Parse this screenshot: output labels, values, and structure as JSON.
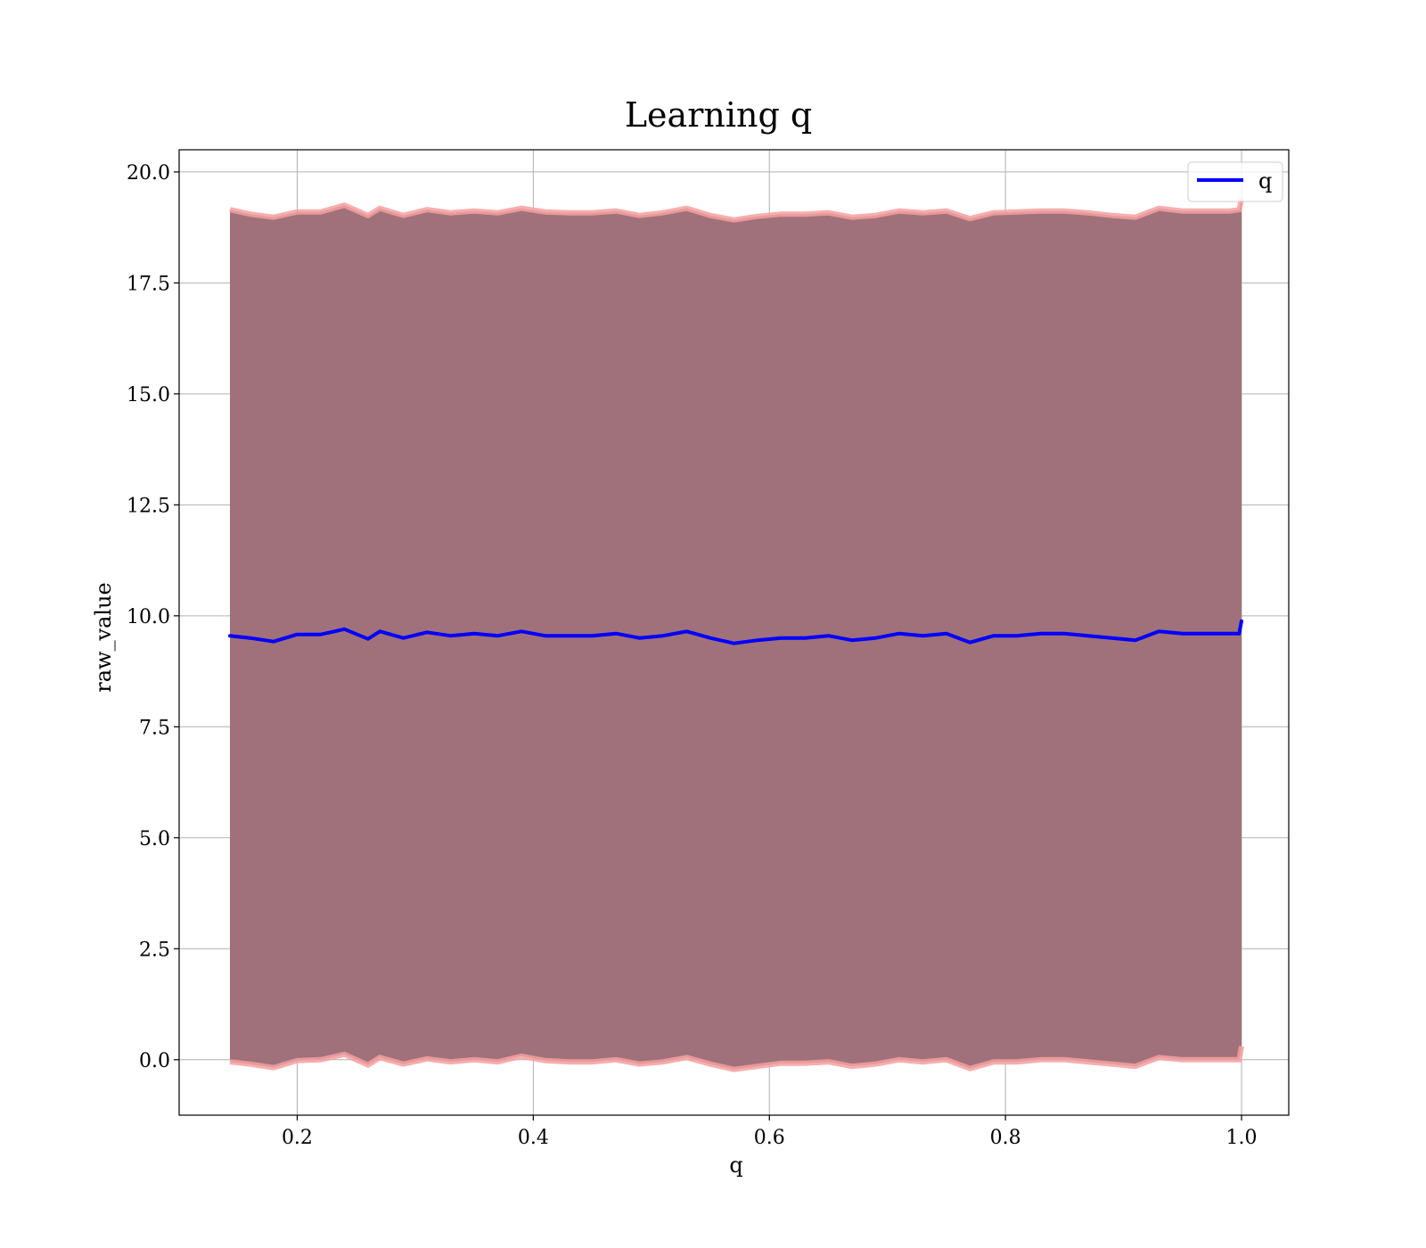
{
  "chart_data": {
    "type": "line",
    "title": "Learning q",
    "xlabel": "q",
    "ylabel": "raw_value",
    "xlim": [
      0.1,
      1.04
    ],
    "ylim": [
      -1.25,
      20.5
    ],
    "xticks": [
      0.2,
      0.4,
      0.6,
      0.8,
      1.0
    ],
    "xtick_labels": [
      "0.2",
      "0.4",
      "0.6",
      "0.8",
      "1.0"
    ],
    "yticks": [
      0.0,
      2.5,
      5.0,
      7.5,
      10.0,
      12.5,
      15.0,
      17.5,
      20.0
    ],
    "ytick_labels": [
      "0.0",
      "2.5",
      "5.0",
      "7.5",
      "10.0",
      "12.5",
      "15.0",
      "17.5",
      "20.0"
    ],
    "grid": true,
    "legend_position": "top-right",
    "series": [
      {
        "name": "q",
        "color": "#0000ff",
        "x": [
          0.143,
          0.16,
          0.18,
          0.2,
          0.22,
          0.24,
          0.26,
          0.27,
          0.29,
          0.31,
          0.33,
          0.35,
          0.37,
          0.39,
          0.41,
          0.43,
          0.45,
          0.47,
          0.49,
          0.51,
          0.53,
          0.55,
          0.57,
          0.59,
          0.61,
          0.63,
          0.65,
          0.67,
          0.69,
          0.71,
          0.73,
          0.75,
          0.77,
          0.79,
          0.81,
          0.83,
          0.85,
          0.87,
          0.89,
          0.91,
          0.93,
          0.95,
          0.97,
          0.99,
          0.998,
          1.0
        ],
        "y": [
          9.55,
          9.5,
          9.42,
          9.58,
          9.58,
          9.7,
          9.48,
          9.65,
          9.5,
          9.63,
          9.55,
          9.6,
          9.55,
          9.65,
          9.55,
          9.55,
          9.55,
          9.6,
          9.5,
          9.55,
          9.65,
          9.5,
          9.38,
          9.45,
          9.5,
          9.5,
          9.55,
          9.45,
          9.5,
          9.6,
          9.55,
          9.6,
          9.4,
          9.55,
          9.55,
          9.6,
          9.6,
          9.55,
          9.5,
          9.45,
          9.65,
          9.6,
          9.6,
          9.6,
          9.6,
          9.88
        ]
      }
    ],
    "bands": [
      {
        "fill_color": "#a0717a",
        "edge_color": "#f4a0a0",
        "x": [
          0.143,
          0.16,
          0.18,
          0.2,
          0.22,
          0.24,
          0.26,
          0.27,
          0.29,
          0.31,
          0.33,
          0.35,
          0.37,
          0.39,
          0.41,
          0.43,
          0.45,
          0.47,
          0.49,
          0.51,
          0.53,
          0.55,
          0.57,
          0.59,
          0.61,
          0.63,
          0.65,
          0.67,
          0.69,
          0.71,
          0.73,
          0.75,
          0.77,
          0.79,
          0.81,
          0.83,
          0.85,
          0.87,
          0.89,
          0.91,
          0.93,
          0.95,
          0.97,
          0.99,
          0.998,
          1.0
        ],
        "upper": [
          19.15,
          19.05,
          18.98,
          19.1,
          19.1,
          19.25,
          19.02,
          19.18,
          19.02,
          19.15,
          19.08,
          19.12,
          19.08,
          19.18,
          19.1,
          19.08,
          19.08,
          19.12,
          19.02,
          19.08,
          19.18,
          19.02,
          18.92,
          19.0,
          19.05,
          19.05,
          19.08,
          18.98,
          19.02,
          19.12,
          19.08,
          19.12,
          18.95,
          19.08,
          19.1,
          19.12,
          19.12,
          19.08,
          19.02,
          18.98,
          19.18,
          19.12,
          19.12,
          19.12,
          19.15,
          19.4
        ],
        "lower": [
          -0.05,
          -0.1,
          -0.18,
          -0.02,
          0.0,
          0.12,
          -0.12,
          0.05,
          -0.1,
          0.02,
          -0.05,
          0.0,
          -0.05,
          0.08,
          -0.02,
          -0.05,
          -0.05,
          0.0,
          -0.1,
          -0.05,
          0.05,
          -0.1,
          -0.22,
          -0.15,
          -0.08,
          -0.08,
          -0.05,
          -0.15,
          -0.1,
          0.0,
          -0.05,
          0.0,
          -0.2,
          -0.05,
          -0.05,
          0.0,
          0.0,
          -0.05,
          -0.1,
          -0.15,
          0.05,
          0.0,
          0.0,
          0.0,
          0.0,
          0.3
        ]
      }
    ]
  }
}
